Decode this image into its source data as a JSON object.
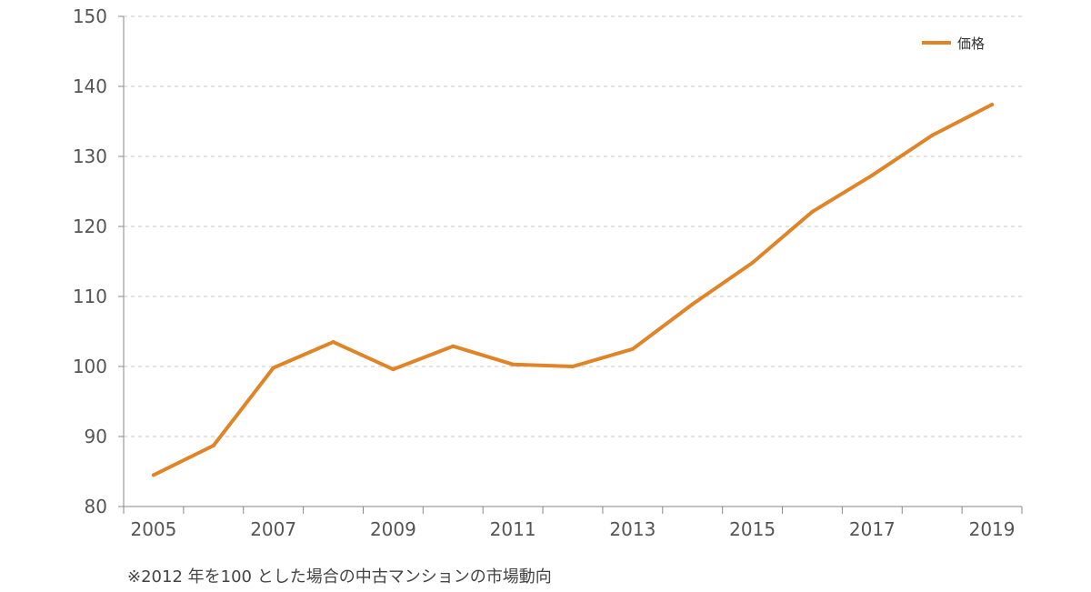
{
  "chart_data": {
    "type": "line",
    "title": "",
    "xlabel": "",
    "ylabel": "",
    "x": [
      2005,
      2006,
      2007,
      2008,
      2009,
      2010,
      2011,
      2012,
      2013,
      2014,
      2015,
      2016,
      2017,
      2018,
      2019
    ],
    "x_tick_labels": [
      "2005",
      "2007",
      "2009",
      "2011",
      "2013",
      "2015",
      "2017",
      "2019"
    ],
    "y_ticks": [
      80,
      90,
      100,
      110,
      120,
      130,
      140,
      150
    ],
    "ylim": [
      80,
      150
    ],
    "grid": "horizontal dashed",
    "legend_position": "top-right",
    "series": [
      {
        "name": "価格",
        "color": "#e08428",
        "values": [
          84.5,
          88.7,
          99.8,
          103.5,
          99.6,
          102.9,
          100.3,
          100.0,
          102.5,
          108.9,
          114.8,
          122.1,
          127.3,
          133.0,
          137.4
        ]
      }
    ]
  },
  "footnote": "※2012 年を100 とした場合の中古マンションの市場動向"
}
